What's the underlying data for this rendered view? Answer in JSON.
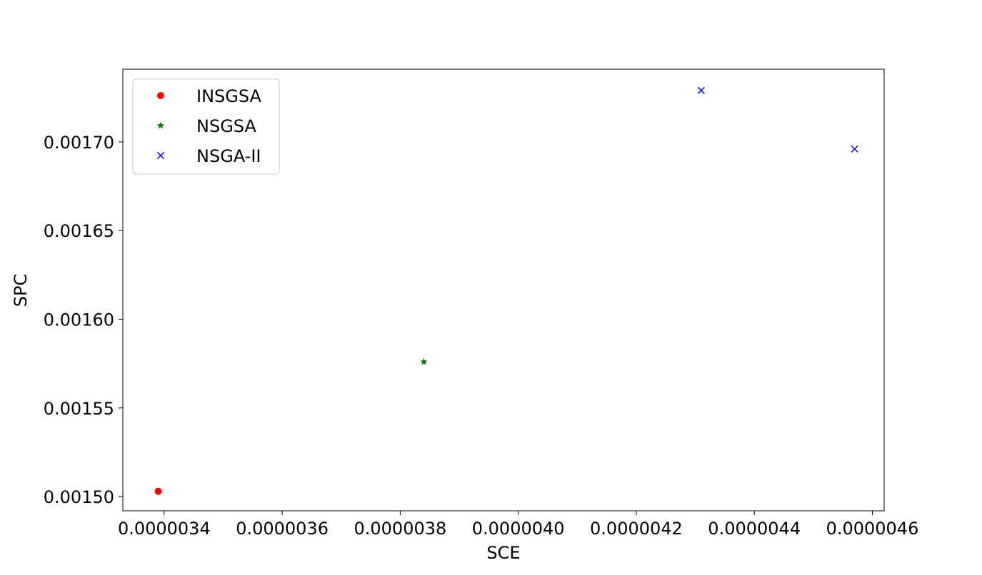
{
  "chart_data": {
    "type": "scatter",
    "title": "",
    "xlabel": "SCE",
    "ylabel": "SPC",
    "xlim": [
      3.33e-06,
      4.62e-06
    ],
    "ylim": [
      0.001492,
      0.001741
    ],
    "x_ticks": [
      3.4e-06,
      3.6e-06,
      3.8e-06,
      4e-06,
      4.2e-06,
      4.4e-06,
      4.6e-06
    ],
    "x_tick_labels": [
      "0.0000034",
      "0.0000036",
      "0.0000038",
      "0.0000040",
      "0.0000042",
      "0.0000044",
      "0.0000046"
    ],
    "y_ticks": [
      0.0015,
      0.00155,
      0.0016,
      0.00165,
      0.0017
    ],
    "y_tick_labels": [
      "0.00150",
      "0.00155",
      "0.00160",
      "0.00165",
      "0.00170"
    ],
    "grid": false,
    "legend_position": "top-left",
    "series": [
      {
        "name": "INSGSA",
        "marker": "circle",
        "color": "#ff0000",
        "points": [
          {
            "x": 3.39e-06,
            "y": 0.001503
          }
        ]
      },
      {
        "name": "NSGSA",
        "marker": "star",
        "color": "#008000",
        "points": [
          {
            "x": 3.84e-06,
            "y": 0.001576
          }
        ]
      },
      {
        "name": "NSGA-II",
        "marker": "x",
        "color": "#0000ff",
        "points": [
          {
            "x": 4.31e-06,
            "y": 0.001729
          },
          {
            "x": 4.57e-06,
            "y": 0.001696
          }
        ]
      }
    ]
  }
}
